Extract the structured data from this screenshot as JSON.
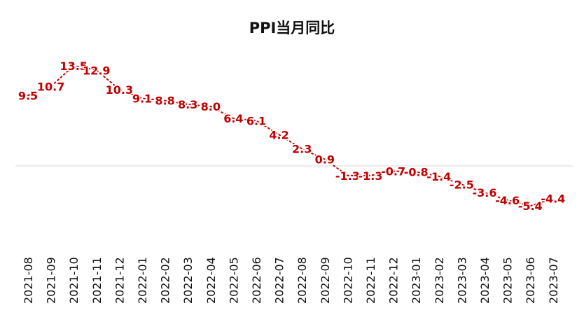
{
  "chart_data": {
    "type": "line",
    "title": "PPI当月同比",
    "xlabel": "",
    "ylabel": "",
    "categories": [
      "2021-08",
      "2021-09",
      "2021-10",
      "2021-11",
      "2021-12",
      "2022-01",
      "2022-02",
      "2022-03",
      "2022-04",
      "2022-05",
      "2022-06",
      "2022-07",
      "2022-08",
      "2022-09",
      "2022-10",
      "2022-11",
      "2022-12",
      "2023-01",
      "2023-02",
      "2023-03",
      "2023-04",
      "2023-05",
      "2023-06",
      "2023-07"
    ],
    "series": [
      {
        "values": [
          9.5,
          10.7,
          13.5,
          12.9,
          10.3,
          9.1,
          8.8,
          8.3,
          8.0,
          6.4,
          6.1,
          4.2,
          2.3,
          0.9,
          -1.3,
          -1.3,
          -0.7,
          -0.8,
          -1.4,
          -2.5,
          -3.6,
          -4.6,
          -5.4,
          -4.4
        ],
        "labels": [
          "9.5",
          "10.7",
          "13.5",
          "12.9",
          "10.3",
          "9.1",
          "8.8",
          "8.3",
          "8.0",
          "6.4",
          "6.1",
          "4.2",
          "2.3",
          "0.9",
          "-1.3",
          "-1.3",
          "-0.7",
          "-0.8",
          "-1.4",
          "-2.5",
          "-3.6",
          "-4.6",
          "-5.4",
          "-4.4"
        ]
      }
    ],
    "ylim": [
      -8,
      16
    ],
    "grid": false,
    "zero_line": true,
    "legend": "none",
    "colors": {
      "line": "#c00000",
      "labels": "#c00000",
      "axis": "#d9d9d9"
    }
  }
}
